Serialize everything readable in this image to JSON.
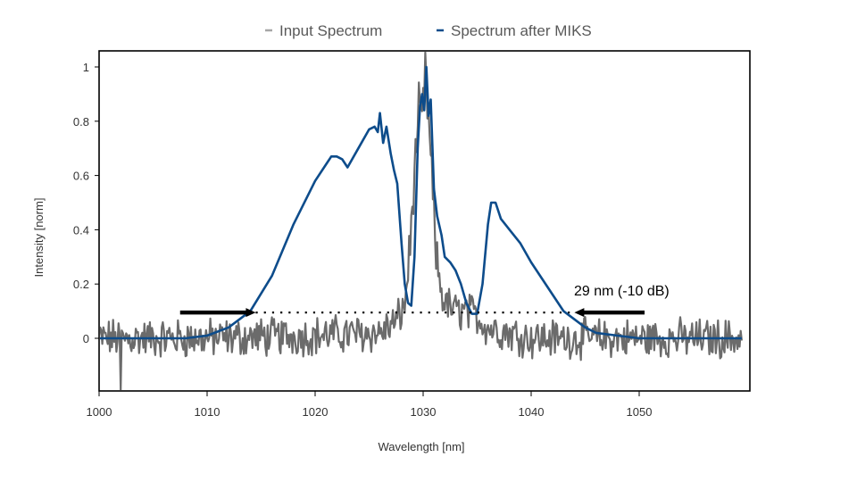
{
  "chart_data": {
    "type": "line",
    "title": "",
    "xlabel": "Wavelength [nm]",
    "ylabel": "Intensity [norm]",
    "xlim": [
      1000,
      1059.5
    ],
    "ylim": [
      -0.19,
      1.06
    ],
    "xticks": [
      1000,
      1010,
      1020,
      1030,
      1040,
      1050
    ],
    "yticks": [
      0,
      0.2,
      0.4,
      0.6,
      0.8,
      1
    ],
    "ytick_labels": [
      "0",
      "0.2",
      "0.4",
      "0.6",
      "0.8",
      "1"
    ],
    "grid": false,
    "legend_position": "top-center",
    "series": [
      {
        "name": "Input Spectrum",
        "color": "#6b6b6b",
        "noise_baseline": {
          "x_range": [
            1000,
            1059.5
          ],
          "mean": 0.0,
          "amplitude": 0.06
        },
        "x": [
          1000,
          1010,
          1020,
          1026,
          1027.5,
          1028.3,
          1028.8,
          1029.2,
          1029.6,
          1029.9,
          1030.2,
          1030.5,
          1030.8,
          1031.2,
          1031.8,
          1032.3,
          1033,
          1034,
          1035,
          1036,
          1040,
          1050,
          1059.5
        ],
        "y": [
          0.0,
          0.0,
          0.01,
          0.02,
          0.06,
          0.12,
          0.35,
          0.6,
          0.85,
          0.8,
          0.98,
          0.8,
          0.6,
          0.3,
          0.15,
          0.12,
          0.1,
          0.1,
          0.08,
          0.04,
          0.0,
          0.0,
          0.0
        ]
      },
      {
        "name": "Spectrum after MIKS",
        "color": "#0d4c8b",
        "x": [
          1000,
          1005,
          1008,
          1010,
          1012,
          1014,
          1016,
          1018,
          1020,
          1021,
          1021.5,
          1022,
          1022.5,
          1023,
          1024,
          1025,
          1025.5,
          1025.8,
          1026,
          1026.3,
          1026.6,
          1027,
          1027.3,
          1027.6,
          1028,
          1028.3,
          1028.6,
          1028.9,
          1029.2,
          1029.5,
          1029.7,
          1029.9,
          1030.1,
          1030.3,
          1030.5,
          1030.7,
          1031,
          1031.3,
          1031.7,
          1032,
          1032.5,
          1033,
          1033.5,
          1034,
          1034.5,
          1035,
          1035.5,
          1036,
          1036.3,
          1036.7,
          1037.2,
          1038,
          1039,
          1040,
          1041,
          1042,
          1043,
          1044,
          1045,
          1046,
          1048,
          1050,
          1055,
          1059.5
        ],
        "y": [
          0.0,
          0.0,
          0.0,
          0.01,
          0.04,
          0.1,
          0.23,
          0.42,
          0.58,
          0.64,
          0.67,
          0.67,
          0.66,
          0.63,
          0.7,
          0.77,
          0.78,
          0.76,
          0.83,
          0.72,
          0.78,
          0.68,
          0.62,
          0.57,
          0.35,
          0.2,
          0.13,
          0.12,
          0.3,
          0.7,
          0.85,
          0.9,
          0.84,
          1.0,
          0.82,
          0.88,
          0.55,
          0.45,
          0.38,
          0.3,
          0.28,
          0.25,
          0.2,
          0.13,
          0.09,
          0.09,
          0.2,
          0.42,
          0.5,
          0.5,
          0.44,
          0.4,
          0.35,
          0.28,
          0.22,
          0.16,
          0.1,
          0.07,
          0.04,
          0.02,
          0.01,
          0.0,
          0.0,
          0.0
        ]
      }
    ],
    "annotations": [
      {
        "type": "double-arrow-dotted",
        "text": "29 nm (-10 dB)",
        "y": 0.095,
        "x_start": 1014.5,
        "x_end": 1044,
        "left_arrow_tail_x": 1007.5,
        "right_arrow_tail_x": 1050.5
      }
    ]
  },
  "legend": {
    "items": [
      {
        "label": "Input Spectrum",
        "color": "#a6a6a6"
      },
      {
        "label": "Spectrum after MIKS",
        "color": "#0d4c8b"
      }
    ]
  }
}
